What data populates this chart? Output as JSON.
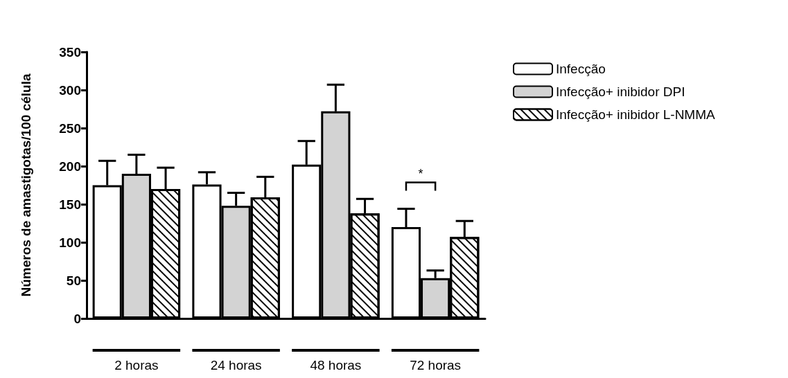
{
  "chart_data": {
    "type": "bar",
    "ylabel": "Números de amastigotas/100 célula",
    "categories": [
      "2 horas",
      "24 horas",
      "48 horas",
      "72 horas"
    ],
    "series": [
      {
        "name": "Infecção",
        "color": "#ffffff",
        "values": [
          175,
          176,
          202,
          120
        ],
        "errors": [
          [
            175,
            207
          ],
          [
            176,
            192
          ],
          [
            202,
            233
          ],
          [
            120,
            144
          ]
        ]
      },
      {
        "name": "Infecção+ inibidor DPI",
        "color": "#d3d3d3",
        "values": [
          190,
          148,
          272,
          53
        ],
        "errors": [
          [
            190,
            215
          ],
          [
            148,
            165
          ],
          [
            272,
            307
          ],
          [
            53,
            63
          ]
        ]
      },
      {
        "name": "Infecção+ inibidor L-NMMA",
        "color": "#ffffff",
        "values": [
          170,
          159,
          138,
          107
        ],
        "errors": [
          [
            170,
            198
          ],
          [
            159,
            186
          ],
          [
            138,
            157
          ],
          [
            107,
            128
          ]
        ]
      }
    ],
    "ylim": [
      0,
      350
    ],
    "yticks": [
      0,
      50,
      100,
      150,
      200,
      250,
      300,
      350
    ],
    "grid": false,
    "legend": "top right",
    "annotations": [
      "*"
    ]
  }
}
